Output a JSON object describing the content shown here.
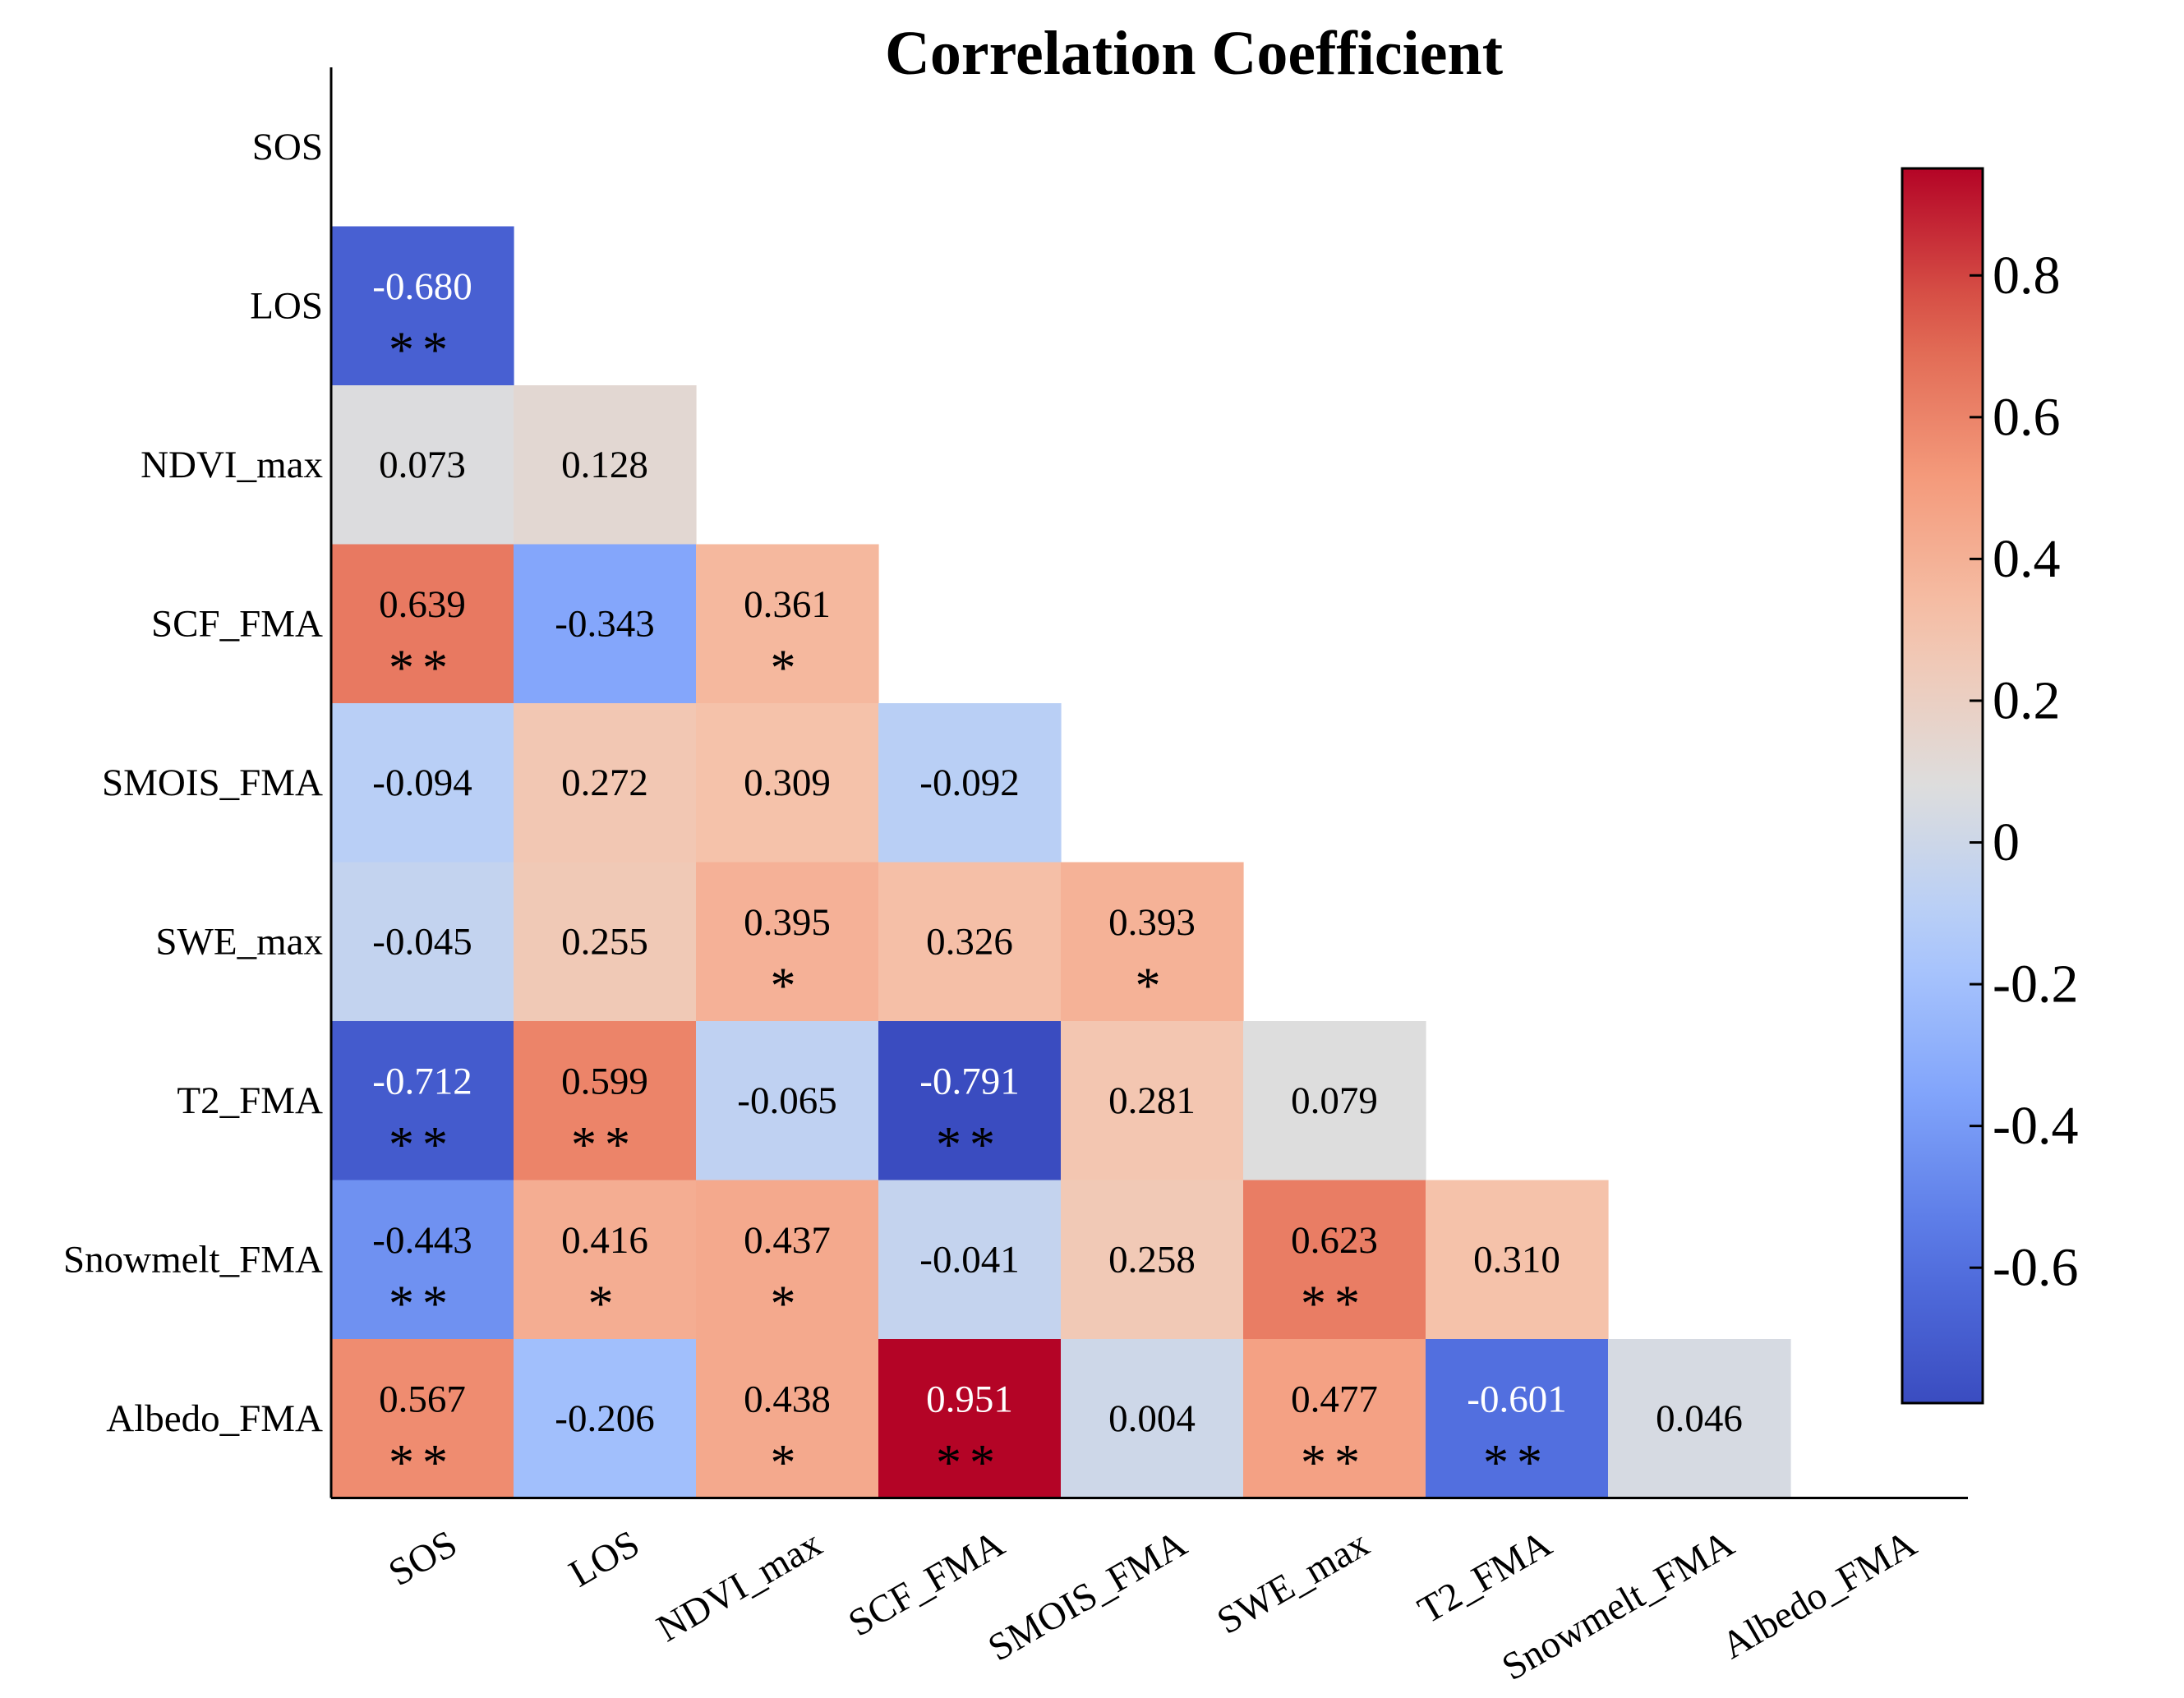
{
  "chart_data": {
    "type": "heatmap",
    "title": "Correlation Coefficient",
    "variables": [
      "SOS",
      "LOS",
      "NDVI_max",
      "SCF_FMA",
      "SMOIS_FMA",
      "SWE_max",
      "T2_FMA",
      "Snowmelt_FMA",
      "Albedo_FMA"
    ],
    "cells": [
      {
        "row": 1,
        "col": 0,
        "label": "-0.680",
        "value": -0.68,
        "sig": "**"
      },
      {
        "row": 2,
        "col": 0,
        "label": "0.073",
        "value": 0.073,
        "sig": ""
      },
      {
        "row": 2,
        "col": 1,
        "label": "0.128",
        "value": 0.128,
        "sig": ""
      },
      {
        "row": 3,
        "col": 0,
        "label": "0.639",
        "value": 0.639,
        "sig": "**"
      },
      {
        "row": 3,
        "col": 1,
        "label": "-0.343",
        "value": -0.343,
        "sig": ""
      },
      {
        "row": 3,
        "col": 2,
        "label": "0.361",
        "value": 0.361,
        "sig": "*"
      },
      {
        "row": 4,
        "col": 0,
        "label": "-0.094",
        "value": -0.094,
        "sig": ""
      },
      {
        "row": 4,
        "col": 1,
        "label": "0.272",
        "value": 0.272,
        "sig": ""
      },
      {
        "row": 4,
        "col": 2,
        "label": "0.309",
        "value": 0.309,
        "sig": ""
      },
      {
        "row": 4,
        "col": 3,
        "label": "-0.092",
        "value": -0.092,
        "sig": ""
      },
      {
        "row": 5,
        "col": 0,
        "label": "-0.045",
        "value": -0.045,
        "sig": ""
      },
      {
        "row": 5,
        "col": 1,
        "label": "0.255",
        "value": 0.255,
        "sig": ""
      },
      {
        "row": 5,
        "col": 2,
        "label": "0.395",
        "value": 0.395,
        "sig": "*"
      },
      {
        "row": 5,
        "col": 3,
        "label": "0.326",
        "value": 0.326,
        "sig": ""
      },
      {
        "row": 5,
        "col": 4,
        "label": "0.393",
        "value": 0.393,
        "sig": "*"
      },
      {
        "row": 6,
        "col": 0,
        "label": "-0.712",
        "value": -0.712,
        "sig": "**"
      },
      {
        "row": 6,
        "col": 1,
        "label": "0.599",
        "value": 0.599,
        "sig": "**"
      },
      {
        "row": 6,
        "col": 2,
        "label": "-0.065",
        "value": -0.065,
        "sig": ""
      },
      {
        "row": 6,
        "col": 3,
        "label": "-0.791",
        "value": -0.791,
        "sig": "**"
      },
      {
        "row": 6,
        "col": 4,
        "label": "0.281",
        "value": 0.281,
        "sig": ""
      },
      {
        "row": 6,
        "col": 5,
        "label": "0.079",
        "value": 0.079,
        "sig": ""
      },
      {
        "row": 7,
        "col": 0,
        "label": "-0.443",
        "value": -0.443,
        "sig": "**"
      },
      {
        "row": 7,
        "col": 1,
        "label": "0.416",
        "value": 0.416,
        "sig": "*"
      },
      {
        "row": 7,
        "col": 2,
        "label": "0.437",
        "value": 0.437,
        "sig": "*"
      },
      {
        "row": 7,
        "col": 3,
        "label": "-0.041",
        "value": -0.041,
        "sig": ""
      },
      {
        "row": 7,
        "col": 4,
        "label": "0.258",
        "value": 0.258,
        "sig": ""
      },
      {
        "row": 7,
        "col": 5,
        "label": "0.623",
        "value": 0.623,
        "sig": "**"
      },
      {
        "row": 7,
        "col": 6,
        "label": "0.310",
        "value": 0.31,
        "sig": ""
      },
      {
        "row": 8,
        "col": 0,
        "label": "0.567",
        "value": 0.567,
        "sig": "**"
      },
      {
        "row": 8,
        "col": 1,
        "label": "-0.206",
        "value": -0.206,
        "sig": ""
      },
      {
        "row": 8,
        "col": 2,
        "label": "0.438",
        "value": 0.438,
        "sig": "*"
      },
      {
        "row": 8,
        "col": 3,
        "label": "0.951",
        "value": 0.951,
        "sig": "**"
      },
      {
        "row": 8,
        "col": 4,
        "label": "0.004",
        "value": 0.004,
        "sig": ""
      },
      {
        "row": 8,
        "col": 5,
        "label": "0.477",
        "value": 0.477,
        "sig": "**"
      },
      {
        "row": 8,
        "col": 6,
        "label": "-0.601",
        "value": -0.601,
        "sig": "**"
      },
      {
        "row": 8,
        "col": 7,
        "label": "0.046",
        "value": 0.046,
        "sig": ""
      }
    ],
    "colorbar": {
      "range": [
        -0.791,
        0.951
      ],
      "ticks": [
        0.8,
        0.6,
        0.4,
        0.2,
        0,
        -0.2,
        -0.4,
        -0.6
      ],
      "tick_labels": [
        "0.8",
        "0.6",
        "0.4",
        "0.2",
        "0",
        "-0.2",
        "-0.4",
        "-0.6"
      ],
      "colormap": "coolwarm",
      "color_low": "#2f4cc8",
      "color_mid": "#dddddd",
      "color_high": "#cc0a23"
    },
    "grid": false,
    "legend": "colorbar-right"
  }
}
